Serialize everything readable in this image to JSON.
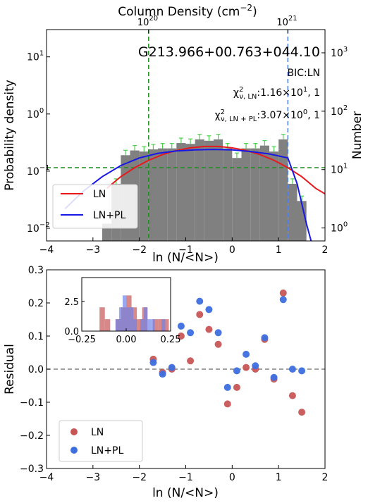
{
  "chart_data": [
    {
      "type": "histogram",
      "title": "G213.966+00.763+044.10",
      "top_axis_label": "Column Density (cm$^{-2}$)",
      "top_ticks": [
        {
          "label": "10",
          "exp": "20",
          "at_x": -1.8
        },
        {
          "label": "10",
          "exp": "21",
          "at_x": 1.2
        }
      ],
      "xlabel": "ln (N/<N>)",
      "ylabel": "Probability density",
      "ylabel_right": "Number",
      "xlim": [
        -4,
        2
      ],
      "ylim": [
        0.006,
        30
      ],
      "yscale": "log",
      "x_ticks": [
        "−4",
        "−3",
        "−2",
        "−1",
        "0",
        "1",
        "2"
      ],
      "y_ticks_left": [
        {
          "base": "10",
          "exp": "1",
          "value": 10
        },
        {
          "base": "10",
          "exp": "0",
          "value": 1
        },
        {
          "base": "10",
          "exp": "−1",
          "value": 0.1
        },
        {
          "base": "10",
          "exp": "−2",
          "value": 0.01
        }
      ],
      "y_ticks_right": [
        {
          "base": "10",
          "exp": "3",
          "value": 1000
        },
        {
          "base": "10",
          "exp": "2",
          "value": 100
        },
        {
          "base": "10",
          "exp": "1",
          "value": 10
        },
        {
          "base": "10",
          "exp": "0",
          "value": 1
        }
      ],
      "annotations": {
        "bic": "BIC:LN",
        "chi_ln_prefix": "χ",
        "chi_ln_sup": "2",
        "chi_ln_sub": "ν, LN",
        "chi_ln_value": ":1.16×10",
        "chi_ln_exp": "1",
        "chi_ln_tail": ", 1",
        "chi_pl_prefix": "χ",
        "chi_pl_sup": "2",
        "chi_pl_sub": "ν, LN + PL",
        "chi_pl_value": ":3.07×10",
        "chi_pl_exp": "0",
        "chi_pl_tail": ", 1"
      },
      "histogram": {
        "color": "#808080",
        "bins": [
          {
            "x0": -2.8,
            "x1": -2.6,
            "value": 0.012
          },
          {
            "x0": -2.6,
            "x1": -2.4,
            "value": 0.06
          },
          {
            "x0": -2.4,
            "x1": -2.2,
            "value": 0.19
          },
          {
            "x0": -2.2,
            "x1": -2.0,
            "value": 0.23
          },
          {
            "x0": -2.0,
            "x1": -1.8,
            "value": 0.22
          },
          {
            "x0": -1.8,
            "x1": -1.6,
            "value": 0.24
          },
          {
            "x0": -1.6,
            "x1": -1.4,
            "value": 0.25
          },
          {
            "x0": -1.4,
            "x1": -1.2,
            "value": 0.25
          },
          {
            "x0": -1.2,
            "x1": -1.0,
            "value": 0.31
          },
          {
            "x0": -1.0,
            "x1": -0.8,
            "value": 0.3
          },
          {
            "x0": -0.8,
            "x1": -0.6,
            "value": 0.36
          },
          {
            "x0": -0.6,
            "x1": -0.4,
            "value": 0.34
          },
          {
            "x0": -0.4,
            "x1": -0.2,
            "value": 0.36
          },
          {
            "x0": -0.2,
            "x1": 0.0,
            "value": 0.25
          },
          {
            "x0": 0.0,
            "x1": 0.2,
            "value": 0.17
          },
          {
            "x0": 0.2,
            "x1": 0.4,
            "value": 0.25
          },
          {
            "x0": 0.4,
            "x1": 0.6,
            "value": 0.25
          },
          {
            "x0": 0.6,
            "x1": 0.8,
            "value": 0.28
          },
          {
            "x0": 0.8,
            "x1": 1.0,
            "value": 0.22
          },
          {
            "x0": 1.0,
            "x1": 1.2,
            "value": 0.36
          },
          {
            "x0": 1.2,
            "x1": 1.4,
            "value": 0.06
          },
          {
            "x0": 1.4,
            "x1": 1.6,
            "value": 0.03
          },
          {
            "x0": 1.6,
            "x1": 1.7,
            "value": 0.006
          }
        ]
      },
      "curves": [
        {
          "name": "LN",
          "color": "#e8191c",
          "x": [
            -2.7,
            -2.4,
            -2.1,
            -1.8,
            -1.5,
            -1.2,
            -0.9,
            -0.6,
            -0.3,
            0.0,
            0.3,
            0.6,
            0.9,
            1.2,
            1.5,
            1.8,
            2.0
          ],
          "y": [
            0.05,
            0.08,
            0.115,
            0.155,
            0.195,
            0.23,
            0.255,
            0.27,
            0.27,
            0.255,
            0.23,
            0.195,
            0.155,
            0.115,
            0.08,
            0.05,
            0.04
          ]
        },
        {
          "name": "LN+PL",
          "color": "#1717e6",
          "x": [
            -3.6,
            -3.2,
            -2.8,
            -2.4,
            -2.0,
            -1.6,
            -1.2,
            -0.8,
            -0.4,
            0.0,
            0.4,
            0.8,
            1.2,
            1.4,
            1.6,
            1.7
          ],
          "y": [
            0.022,
            0.045,
            0.08,
            0.125,
            0.17,
            0.205,
            0.225,
            0.235,
            0.24,
            0.235,
            0.22,
            0.2,
            0.17,
            0.06,
            0.012,
            0.006
          ]
        }
      ],
      "hlines": [
        {
          "y": 0.115,
          "color": "#1a8f1a",
          "style": "dashed"
        }
      ],
      "vlines": [
        {
          "x": -1.8,
          "color": "#1a8f1a",
          "style": "dashed"
        },
        {
          "x": 1.2,
          "color": "#4d7ee8",
          "style": "dashed"
        }
      ],
      "legend": {
        "position": "lower-left",
        "entries": [
          "LN",
          "LN+PL"
        ]
      }
    },
    {
      "type": "scatter",
      "xlabel": "ln (N/<N>)",
      "ylabel": "Residual",
      "xlim": [
        -4,
        2
      ],
      "ylim": [
        -0.3,
        0.3
      ],
      "x_ticks": [
        "−4",
        "−3",
        "−2",
        "−1",
        "0",
        "1",
        "2"
      ],
      "y_ticks": [
        "0.3",
        "0.2",
        "0.1",
        "0.0",
        "−0.1",
        "−0.2",
        "−0.3"
      ],
      "zero_line": true,
      "series": [
        {
          "name": "LN",
          "color": "#c85555",
          "x": [
            -1.7,
            -1.5,
            -1.3,
            -1.1,
            -0.9,
            -0.7,
            -0.5,
            -0.3,
            -0.1,
            0.1,
            0.3,
            0.5,
            0.7,
            0.9,
            1.1,
            1.3,
            1.5
          ],
          "y": [
            0.03,
            -0.01,
            0.0,
            0.1,
            0.025,
            0.165,
            0.12,
            0.075,
            -0.105,
            -0.055,
            0.005,
            0.0,
            0.09,
            -0.03,
            0.23,
            -0.08,
            -0.13
          ]
        },
        {
          "name": "LN+PL",
          "color": "#3d6fe0",
          "x": [
            -1.7,
            -1.5,
            -1.3,
            -1.1,
            -0.9,
            -0.7,
            -0.5,
            -0.3,
            -0.1,
            0.1,
            0.3,
            0.5,
            0.7,
            0.9,
            1.1,
            1.3,
            1.5
          ],
          "y": [
            0.02,
            -0.015,
            0.005,
            0.13,
            0.11,
            0.205,
            0.18,
            0.11,
            -0.055,
            -0.005,
            0.045,
            0.01,
            0.095,
            -0.025,
            0.21,
            0.0,
            -0.005
          ]
        }
      ],
      "legend": {
        "position": "lower-left",
        "entries": [
          "LN",
          "LN+PL"
        ]
      },
      "inset": {
        "type": "histogram",
        "xlim": [
          -0.25,
          0.25
        ],
        "ylim": [
          0,
          4.5
        ],
        "x_ticks": [
          "−0.25",
          "0.00",
          "0.25"
        ],
        "y_ticks": [
          "2.5",
          "0.0"
        ],
        "series": [
          {
            "name": "LN",
            "color": "#c85555",
            "edges": [
              -0.15,
              -0.12,
              -0.09,
              -0.06,
              -0.03,
              0.0,
              0.03,
              0.06,
              0.09,
              0.12,
              0.15,
              0.18,
              0.21,
              0.24
            ],
            "counts": [
              2,
              1,
              0,
              1,
              2,
              3,
              2,
              1,
              2,
              0,
              1,
              1,
              1
            ]
          },
          {
            "name": "LN+PL",
            "color": "#6f83e8",
            "edges": [
              -0.06,
              -0.04,
              -0.02,
              0.0,
              0.02,
              0.04,
              0.06,
              0.08,
              0.1,
              0.12,
              0.14,
              0.16,
              0.18,
              0.2,
              0.22
            ],
            "counts": [
              1,
              2,
              3,
              2,
              2,
              1,
              0,
              1,
              2,
              1,
              1,
              0,
              0,
              1
            ]
          }
        ]
      }
    }
  ]
}
